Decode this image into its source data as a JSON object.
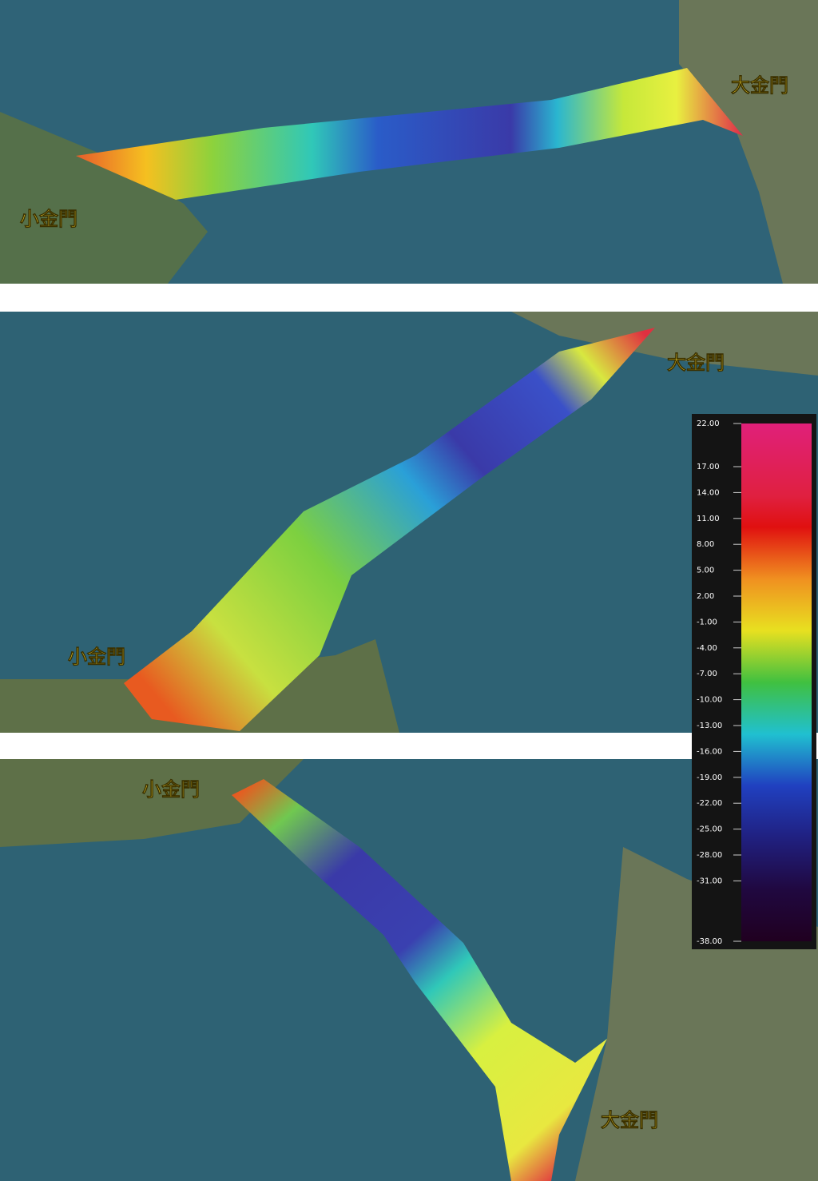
{
  "panels": [
    {
      "labels": [
        "小金門",
        "大金門"
      ]
    },
    {
      "labels": [
        "小金門",
        "大金門"
      ]
    },
    {
      "labels": [
        "小金門",
        "大金門"
      ]
    }
  ],
  "legend": {
    "ticks": [
      {
        "value": 22,
        "label": "22.00"
      },
      {
        "value": 17,
        "label": "17.00"
      },
      {
        "value": 14,
        "label": "14.00"
      },
      {
        "value": 11,
        "label": "11.00"
      },
      {
        "value": 8,
        "label": "8.00"
      },
      {
        "value": 5,
        "label": "5.00"
      },
      {
        "value": 2,
        "label": "2.00"
      },
      {
        "value": -1,
        "label": "-1.00"
      },
      {
        "value": -4,
        "label": "-4.00"
      },
      {
        "value": -7,
        "label": "-7.00"
      },
      {
        "value": -10,
        "label": "-10.00"
      },
      {
        "value": -13,
        "label": "-13.00"
      },
      {
        "value": -16,
        "label": "-16.00"
      },
      {
        "value": -19,
        "label": "-19.00"
      },
      {
        "value": -22,
        "label": "-22.00"
      },
      {
        "value": -25,
        "label": "-25.00"
      },
      {
        "value": -28,
        "label": "-28.00"
      },
      {
        "value": -31,
        "label": "-31.00"
      },
      {
        "value": -38,
        "label": "-38.00"
      }
    ],
    "lim": [
      -38,
      22
    ]
  }
}
